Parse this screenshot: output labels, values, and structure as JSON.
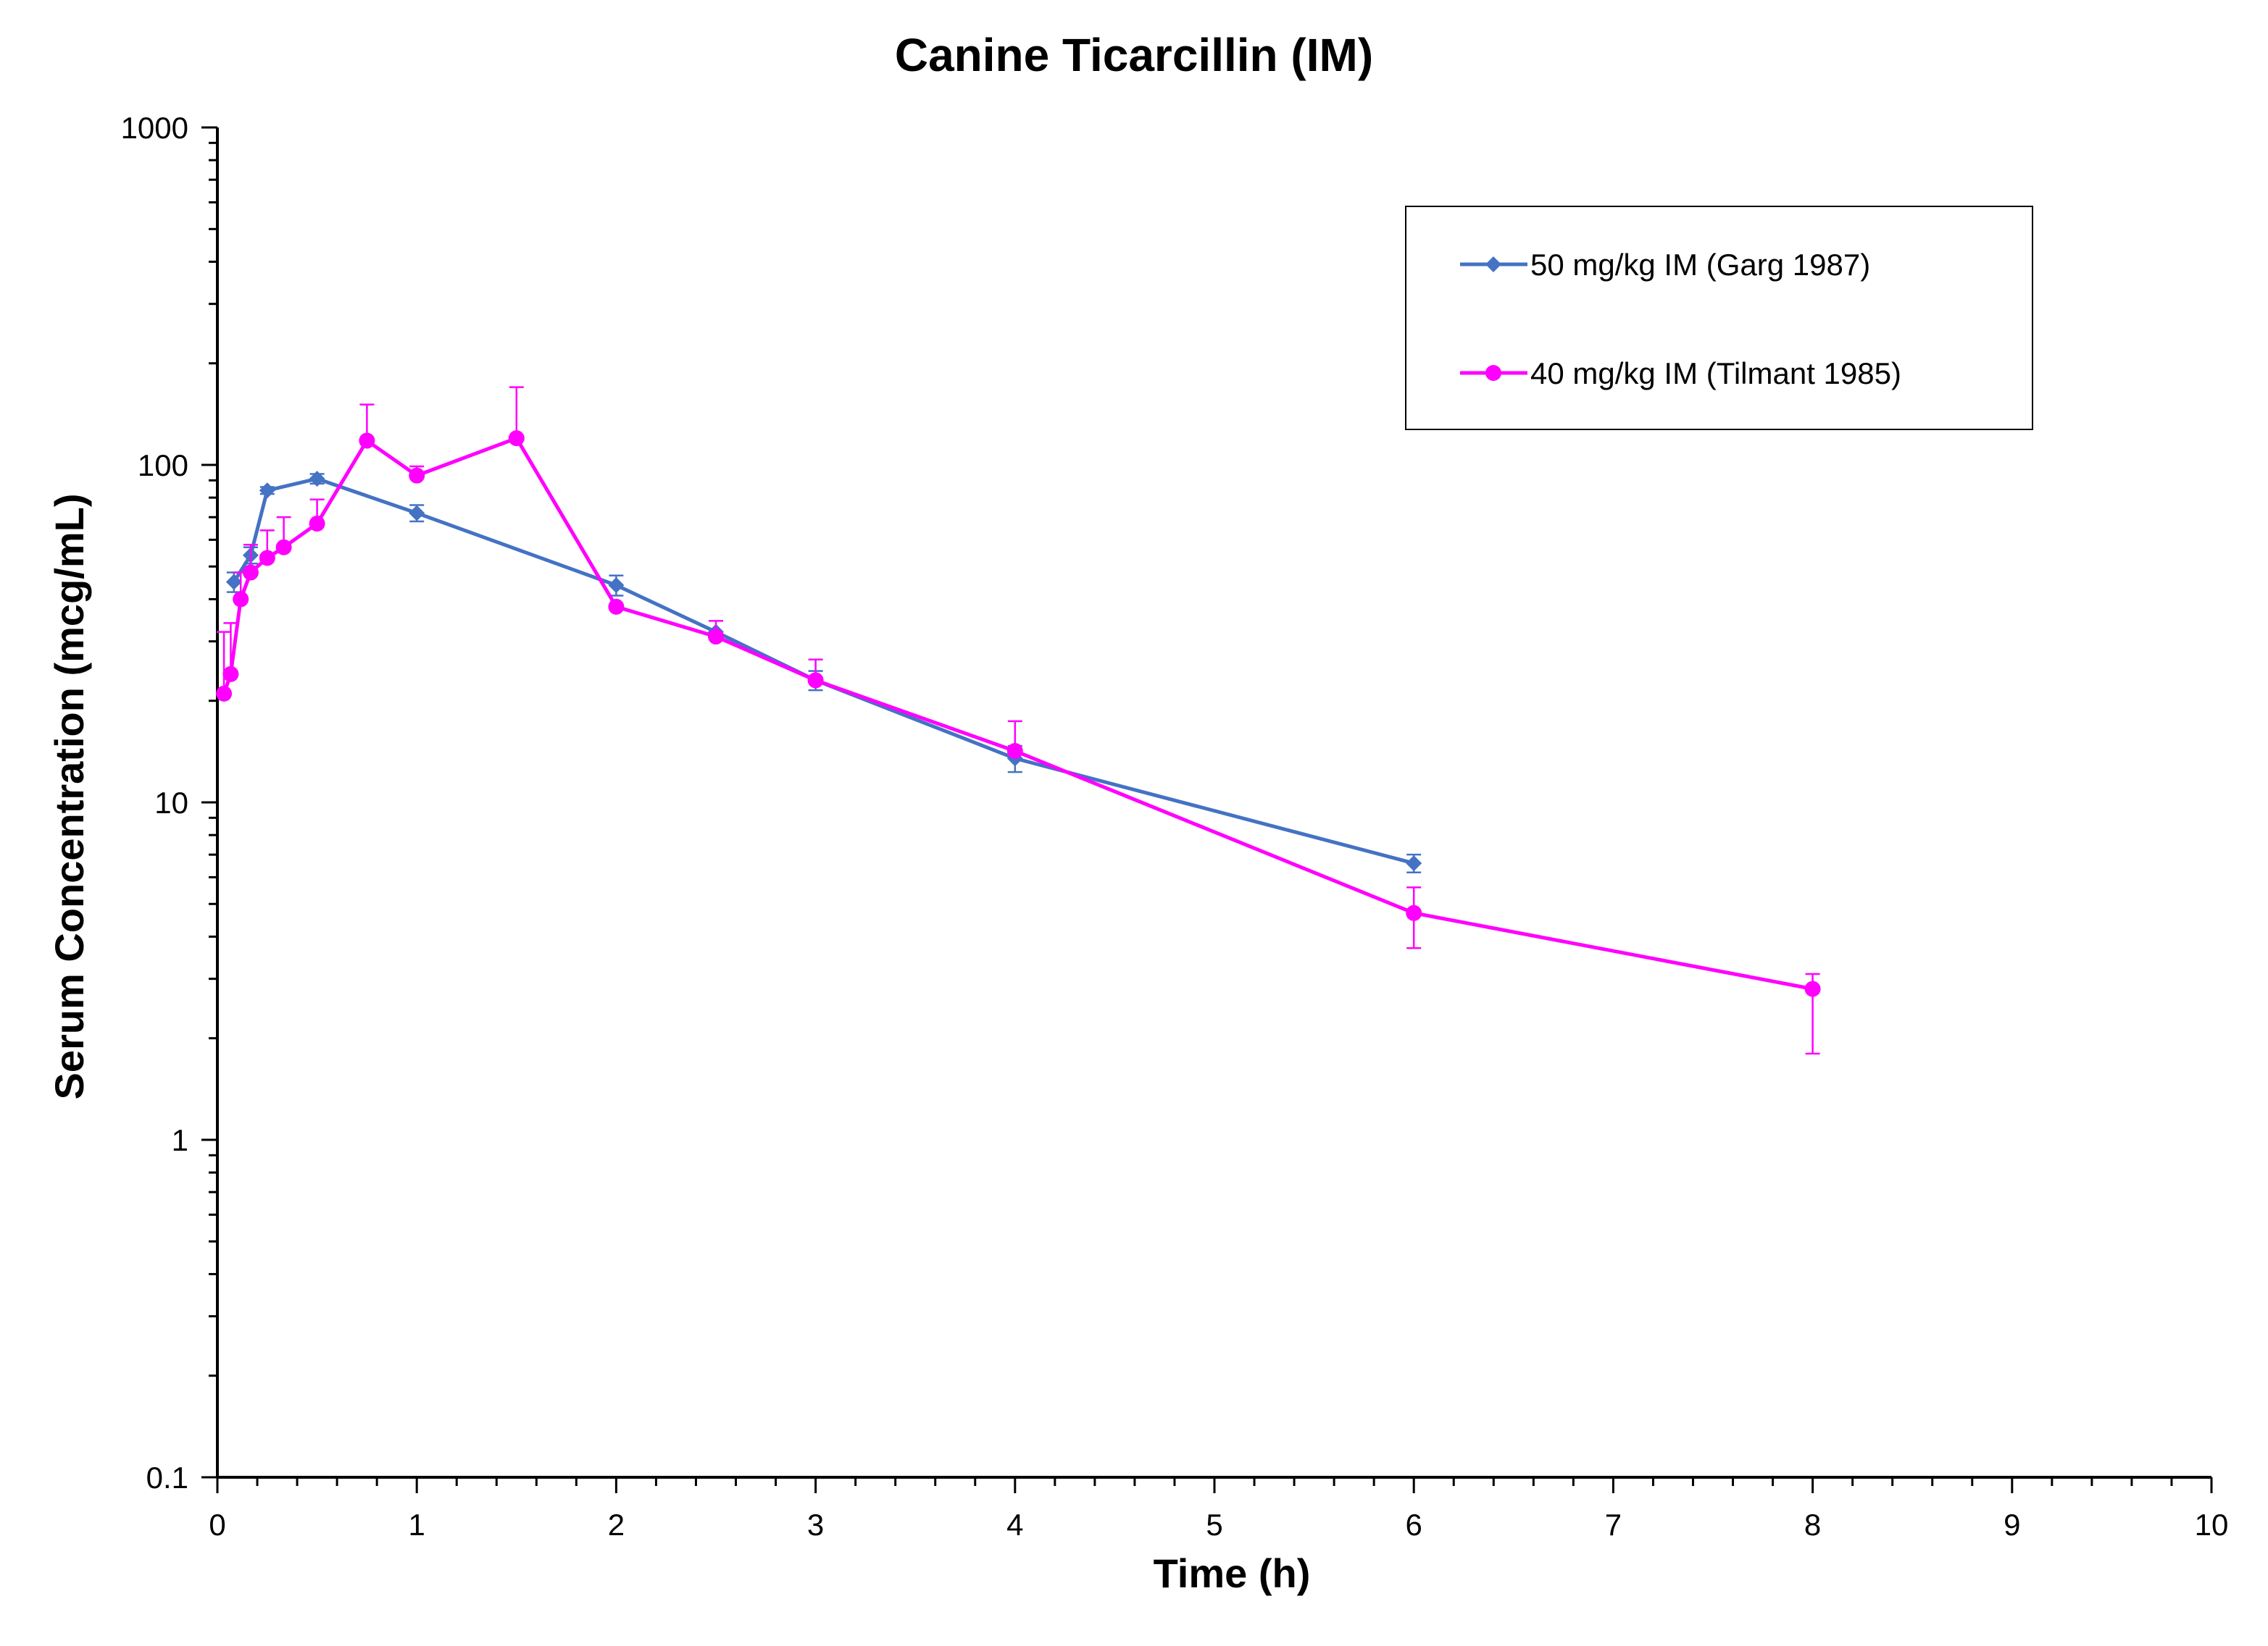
{
  "chart_data": {
    "type": "line",
    "title": "Canine Ticarcillin (IM)",
    "xlabel": "Time (h)",
    "ylabel": "Serum Concentration (mcg/mL)",
    "xlim": [
      0,
      10
    ],
    "ylim": [
      0.1,
      1000
    ],
    "yscale": "log",
    "grid": false,
    "legend_position": "top-right",
    "x_ticks": [
      "0",
      "1",
      "2",
      "3",
      "4",
      "5",
      "6",
      "7",
      "8",
      "9",
      "10"
    ],
    "y_ticks": [
      "0.1",
      "1",
      "10",
      "100",
      "1000"
    ],
    "series": [
      {
        "name": "50 mg/kg IM (Garg 1987)",
        "color": "#4472C4",
        "marker": "diamond",
        "x": [
          0.083,
          0.167,
          0.25,
          0.5,
          1,
          2,
          2.5,
          3,
          4,
          6
        ],
        "y": [
          45,
          54,
          84,
          91,
          72,
          44,
          32,
          23,
          13.5,
          6.6
        ],
        "err_up": [
          3,
          3,
          2,
          3,
          4,
          3,
          0,
          1.5,
          1.2,
          0.4
        ],
        "err_down": [
          3,
          3,
          2,
          3,
          4,
          3,
          0,
          1.5,
          1.2,
          0.4
        ]
      },
      {
        "name": "40 mg/kg IM (Tilmant 1985)",
        "color": "#FF00FF",
        "marker": "circle",
        "x": [
          0.033,
          0.067,
          0.117,
          0.167,
          0.25,
          0.333,
          0.5,
          0.75,
          1,
          1.5,
          2,
          2.5,
          3,
          4,
          6,
          8
        ],
        "y": [
          21,
          24,
          40,
          48,
          53,
          57,
          67,
          118,
          93,
          120,
          38,
          31,
          23,
          14.2,
          4.7,
          2.8
        ],
        "err_up": [
          11,
          10,
          8,
          10,
          11,
          13,
          12,
          33,
          6,
          50,
          0,
          3.5,
          3.5,
          3.2,
          0.9,
          0.3
        ],
        "err_down": [
          0,
          0,
          0,
          0,
          0,
          0,
          0,
          0,
          0,
          0,
          0,
          0,
          0,
          0,
          1.0,
          1.0
        ]
      }
    ]
  }
}
